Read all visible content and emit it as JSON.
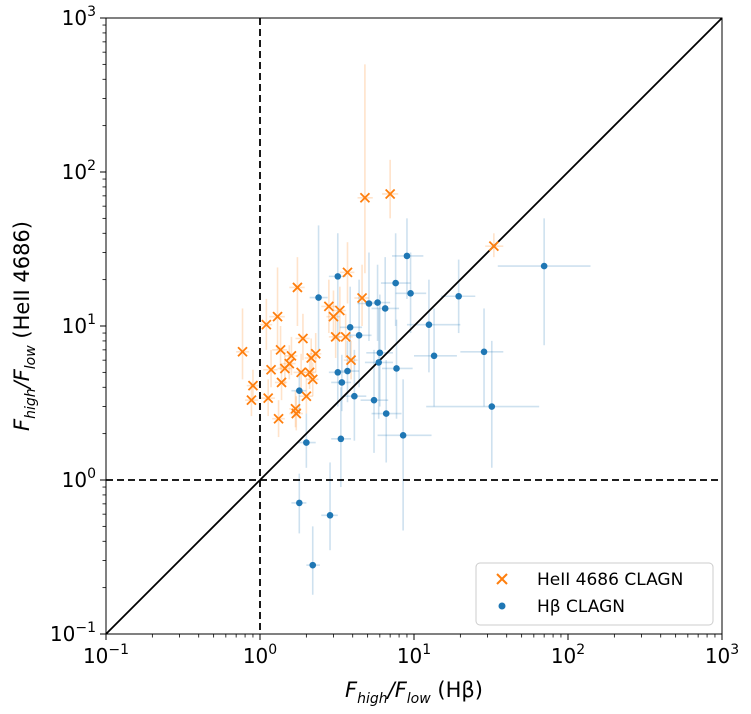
{
  "chart_data": {
    "type": "scatter",
    "title": "",
    "xlabel": {
      "main": "F",
      "sub1": "high",
      "mid": "/F",
      "sub2": "low",
      "suffix": " (Hβ)"
    },
    "ylabel": {
      "main": "F",
      "sub1": "high",
      "mid": "/F",
      "sub2": "low",
      "suffix": " (HeII 4686)"
    },
    "xscale": "log",
    "yscale": "log",
    "xlim": [
      0.1,
      1000
    ],
    "ylim": [
      0.1,
      1000
    ],
    "ticks": [
      {
        "value": 0.1,
        "base": "10",
        "exp": "−1"
      },
      {
        "value": 1,
        "base": "10",
        "exp": "0"
      },
      {
        "value": 10,
        "base": "10",
        "exp": "1"
      },
      {
        "value": 100,
        "base": "10",
        "exp": "2"
      },
      {
        "value": 1000,
        "base": "10",
        "exp": "3"
      }
    ],
    "reference_lines": [
      {
        "kind": "vertical",
        "x": 1,
        "style": "dashed"
      },
      {
        "kind": "horizontal",
        "y": 1,
        "style": "dashed"
      },
      {
        "kind": "diagonal",
        "from": [
          0.1,
          0.1
        ],
        "to": [
          1000,
          1000
        ],
        "style": "solid"
      }
    ],
    "legend": {
      "position": "lower-right",
      "entries": [
        "HeII 4686 CLAGN",
        "Hβ CLAGN"
      ]
    },
    "series": [
      {
        "name": "HeII 4686 CLAGN",
        "marker": "x",
        "color": "#ff7f0e",
        "points": [
          {
            "x": 0.77,
            "y": 6.8,
            "xe": [
              0.7,
              0.85
            ],
            "ye": [
              4.5,
              13
            ]
          },
          {
            "x": 0.88,
            "y": 3.3,
            "xe": [
              0.8,
              0.97
            ],
            "ye": [
              2.6,
              4.3
            ]
          },
          {
            "x": 0.9,
            "y": 4.1,
            "xe": [
              0.82,
              0.98
            ],
            "ye": [
              3.3,
              5.2
            ]
          },
          {
            "x": 1.1,
            "y": 10.2,
            "xe": [
              1.0,
              1.2
            ],
            "ye": [
              7,
              15
            ]
          },
          {
            "x": 1.13,
            "y": 3.4,
            "xe": [
              1.0,
              1.25
            ],
            "ye": [
              2.6,
              4.5
            ]
          },
          {
            "x": 1.18,
            "y": 5.2,
            "xe": [
              1.05,
              1.3
            ],
            "ye": [
              4,
              7
            ]
          },
          {
            "x": 1.3,
            "y": 11.5,
            "xe": [
              1.15,
              1.45
            ],
            "ye": [
              7,
              24
            ]
          },
          {
            "x": 1.32,
            "y": 2.5,
            "xe": [
              1.2,
              1.45
            ],
            "ye": [
              1.9,
              3.3
            ]
          },
          {
            "x": 1.36,
            "y": 7.0,
            "xe": [
              1.2,
              1.5
            ],
            "ye": [
              5.2,
              10
            ]
          },
          {
            "x": 1.38,
            "y": 4.3,
            "xe": [
              1.25,
              1.5
            ],
            "ye": [
              3.3,
              5.7
            ]
          },
          {
            "x": 1.45,
            "y": 5.3,
            "xe": [
              1.3,
              1.6
            ],
            "ye": [
              4.2,
              6.8
            ]
          },
          {
            "x": 1.55,
            "y": 5.7,
            "xe": [
              1.4,
              1.7
            ],
            "ye": [
              4.5,
              7.5
            ]
          },
          {
            "x": 1.6,
            "y": 6.4,
            "xe": [
              1.45,
              1.75
            ],
            "ye": [
              4.8,
              8.5
            ]
          },
          {
            "x": 1.7,
            "y": 2.9,
            "xe": [
              1.55,
              1.85
            ],
            "ye": [
              2.2,
              3.8
            ]
          },
          {
            "x": 1.72,
            "y": 2.7,
            "xe": [
              1.55,
              1.9
            ],
            "ye": [
              2.1,
              3.5
            ]
          },
          {
            "x": 1.75,
            "y": 17.8,
            "xe": [
              1.55,
              1.95
            ],
            "ye": [
              10,
              28
            ]
          },
          {
            "x": 1.85,
            "y": 5.0,
            "xe": [
              1.65,
              2.05
            ],
            "ye": [
              3.8,
              6.6
            ]
          },
          {
            "x": 1.9,
            "y": 8.3,
            "xe": [
              1.7,
              2.1
            ],
            "ye": [
              6,
              12
            ]
          },
          {
            "x": 2.0,
            "y": 3.5,
            "xe": [
              1.8,
              2.2
            ],
            "ye": [
              2.7,
              4.6
            ]
          },
          {
            "x": 2.1,
            "y": 5.0,
            "xe": [
              1.9,
              2.3
            ],
            "ye": [
              3.9,
              6.5
            ]
          },
          {
            "x": 2.15,
            "y": 6.2,
            "xe": [
              1.95,
              2.35
            ],
            "ye": [
              4.6,
              8.3
            ]
          },
          {
            "x": 2.2,
            "y": 4.5,
            "xe": [
              2.0,
              2.4
            ],
            "ye": [
              3.5,
              5.8
            ]
          },
          {
            "x": 2.3,
            "y": 6.6,
            "xe": [
              2.1,
              2.5
            ],
            "ye": [
              5,
              9
            ]
          },
          {
            "x": 2.8,
            "y": 13.4,
            "xe": [
              2.5,
              3.1
            ],
            "ye": [
              9,
              20
            ]
          },
          {
            "x": 3.0,
            "y": 11.5,
            "xe": [
              2.7,
              3.3
            ],
            "ye": [
              8,
              17
            ]
          },
          {
            "x": 3.1,
            "y": 8.5,
            "xe": [
              2.8,
              3.4
            ],
            "ye": [
              6.2,
              12
            ]
          },
          {
            "x": 3.3,
            "y": 12.6,
            "xe": [
              3.0,
              3.6
            ],
            "ye": [
              9,
              18
            ]
          },
          {
            "x": 3.6,
            "y": 8.5,
            "xe": [
              3.25,
              4.0
            ],
            "ye": [
              6.2,
              12
            ]
          },
          {
            "x": 3.7,
            "y": 22.3,
            "xe": [
              3.3,
              4.1
            ],
            "ye": [
              14,
              35
            ]
          },
          {
            "x": 3.9,
            "y": 6.0,
            "xe": [
              3.5,
              4.3
            ],
            "ye": [
              4.5,
              8
            ]
          },
          {
            "x": 4.6,
            "y": 15.2,
            "xe": [
              4.1,
              5.1
            ],
            "ye": [
              10,
              25
            ]
          },
          {
            "x": 4.8,
            "y": 68,
            "xe": [
              4.3,
              5.4
            ],
            "ye": [
              22,
              500
            ]
          },
          {
            "x": 7.0,
            "y": 72,
            "xe": [
              6.2,
              7.9
            ],
            "ye": [
              50,
              120
            ]
          },
          {
            "x": 33,
            "y": 33,
            "xe": [
              29,
              38
            ],
            "ye": [
              28,
              40
            ]
          }
        ]
      },
      {
        "name": "Hβ CLAGN",
        "marker": "o",
        "color": "#1f77b4",
        "points": [
          {
            "x": 1.8,
            "y": 0.71,
            "xe": [
              1.6,
              2.0
            ],
            "ye": [
              0.45,
              1.1
            ]
          },
          {
            "x": 1.8,
            "y": 3.8,
            "xe": [
              1.6,
              2.0
            ],
            "ye": [
              2.8,
              5.2
            ]
          },
          {
            "x": 2.0,
            "y": 1.75,
            "xe": [
              1.75,
              2.3
            ],
            "ye": [
              1.2,
              2.7
            ]
          },
          {
            "x": 2.2,
            "y": 0.28,
            "xe": [
              2.0,
              2.45
            ],
            "ye": [
              0.18,
              0.5
            ]
          },
          {
            "x": 2.4,
            "y": 15.3,
            "xe": [
              2.1,
              2.75
            ],
            "ye": [
              7,
              45
            ]
          },
          {
            "x": 2.85,
            "y": 0.59,
            "xe": [
              2.5,
              3.2
            ],
            "ye": [
              0.35,
              1.3
            ]
          },
          {
            "x": 3.2,
            "y": 21,
            "xe": [
              2.8,
              3.6
            ],
            "ye": [
              11,
              40
            ]
          },
          {
            "x": 3.2,
            "y": 5.0,
            "xe": [
              2.8,
              3.7
            ],
            "ye": [
              3,
              11
            ]
          },
          {
            "x": 3.35,
            "y": 1.85,
            "xe": [
              2.9,
              3.9
            ],
            "ye": [
              0.9,
              4
            ]
          },
          {
            "x": 3.4,
            "y": 4.3,
            "xe": [
              2.9,
              3.9
            ],
            "ye": [
              2.8,
              6.5
            ]
          },
          {
            "x": 3.7,
            "y": 5.1,
            "xe": [
              3.2,
              4.4
            ],
            "ye": [
              3.2,
              8
            ]
          },
          {
            "x": 3.85,
            "y": 9.8,
            "xe": [
              3.3,
              4.6
            ],
            "ye": [
              6,
              18
            ]
          },
          {
            "x": 4.1,
            "y": 3.5,
            "xe": [
              3.5,
              4.9
            ],
            "ye": [
              1.8,
              7
            ]
          },
          {
            "x": 4.4,
            "y": 8.7,
            "xe": [
              3.7,
              5.3
            ],
            "ye": [
              4,
              20
            ]
          },
          {
            "x": 5.1,
            "y": 14,
            "xe": [
              4.3,
              6.1
            ],
            "ye": [
              8,
              30
            ]
          },
          {
            "x": 5.5,
            "y": 3.3,
            "xe": [
              4.5,
              6.8
            ],
            "ye": [
              1.5,
              7
            ]
          },
          {
            "x": 5.8,
            "y": 14.2,
            "xe": [
              4.8,
              7.0
            ],
            "ye": [
              8,
              25
            ]
          },
          {
            "x": 5.9,
            "y": 5.8,
            "xe": [
              4.8,
              7.3
            ],
            "ye": [
              2.5,
              13
            ]
          },
          {
            "x": 6.0,
            "y": 6.7,
            "xe": [
              4.9,
              7.3
            ],
            "ye": [
              3,
              16
            ]
          },
          {
            "x": 6.5,
            "y": 13,
            "xe": [
              5.3,
              8.0
            ],
            "ye": [
              7,
              28
            ]
          },
          {
            "x": 6.6,
            "y": 2.7,
            "xe": [
              5.3,
              8.3
            ],
            "ye": [
              1.3,
              6
            ]
          },
          {
            "x": 7.6,
            "y": 19,
            "xe": [
              6.1,
              9.5
            ],
            "ye": [
              10,
              40
            ]
          },
          {
            "x": 7.7,
            "y": 5.3,
            "xe": [
              6.2,
              9.8
            ],
            "ye": [
              2.5,
              11
            ]
          },
          {
            "x": 8.5,
            "y": 1.95,
            "xe": [
              5.8,
              13
            ],
            "ye": [
              0.47,
              4.5
            ]
          },
          {
            "x": 9.0,
            "y": 28.5,
            "xe": [
              7.2,
              11.5
            ],
            "ye": [
              15,
              50
            ]
          },
          {
            "x": 9.5,
            "y": 16.3,
            "xe": [
              7.6,
              12
            ],
            "ye": [
              9,
              30
            ]
          },
          {
            "x": 12.5,
            "y": 10.2,
            "xe": [
              9,
              20
            ],
            "ye": [
              5,
              20
            ]
          },
          {
            "x": 13.5,
            "y": 6.4,
            "xe": [
              10,
              19
            ],
            "ye": [
              3,
              13
            ]
          },
          {
            "x": 19.5,
            "y": 15.6,
            "xe": [
              15,
              25
            ],
            "ye": [
              9,
              27
            ]
          },
          {
            "x": 28.5,
            "y": 6.8,
            "xe": [
              20,
              38
            ],
            "ye": [
              3,
              13
            ]
          },
          {
            "x": 32,
            "y": 3.0,
            "xe": [
              12,
              65
            ],
            "ye": [
              1.2,
              8
            ]
          },
          {
            "x": 70,
            "y": 24.5,
            "xe": [
              35,
              140
            ],
            "ye": [
              7.5,
              50
            ]
          }
        ]
      }
    ]
  }
}
